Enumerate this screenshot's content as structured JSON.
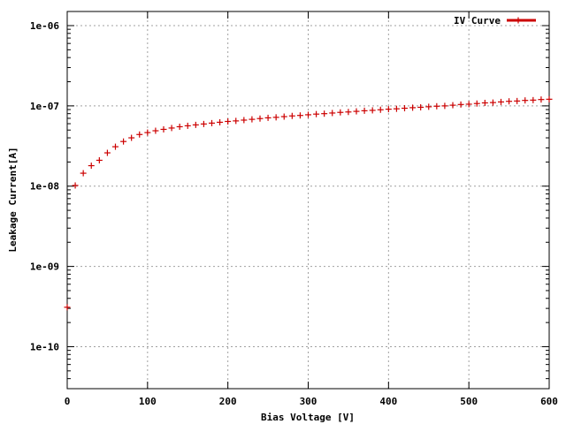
{
  "chart_data": {
    "type": "scatter",
    "xlabel": "Bias Voltage [V]",
    "ylabel": "Leakage Current[A]",
    "xlim": [
      0,
      600
    ],
    "ylim": [
      3e-11,
      1.5e-06
    ],
    "yscale": "log",
    "grid": true,
    "legend_position": "top-right",
    "x_ticks": [
      0,
      100,
      200,
      300,
      400,
      500,
      600
    ],
    "x_tick_labels": [
      "0",
      "100",
      "200",
      "300",
      "400",
      "500",
      "600"
    ],
    "y_ticks": [
      1e-10,
      1e-09,
      1e-08,
      1e-07,
      1e-06
    ],
    "y_tick_labels": [
      "1e-10",
      "1e-09",
      "1e-08",
      "1e-07",
      "1e-06"
    ],
    "series": [
      {
        "name": "IV Curve",
        "color": "#cc0000",
        "marker": "plus",
        "x": [
          0,
          10,
          20,
          30,
          40,
          50,
          60,
          70,
          80,
          90,
          100,
          110,
          120,
          130,
          140,
          150,
          160,
          170,
          180,
          190,
          200,
          210,
          220,
          230,
          240,
          250,
          260,
          270,
          280,
          290,
          300,
          310,
          320,
          330,
          340,
          350,
          360,
          370,
          380,
          390,
          400,
          410,
          420,
          430,
          440,
          450,
          460,
          470,
          480,
          490,
          500,
          510,
          520,
          530,
          540,
          550,
          560,
          570,
          580,
          590,
          600
        ],
        "y": [
          3.1e-10,
          1.02e-08,
          1.45e-08,
          1.8e-08,
          2.1e-08,
          2.6e-08,
          3.1e-08,
          3.6e-08,
          4e-08,
          4.4e-08,
          4.65e-08,
          4.9e-08,
          5.1e-08,
          5.3e-08,
          5.5e-08,
          5.65e-08,
          5.8e-08,
          5.95e-08,
          6.1e-08,
          6.25e-08,
          6.4e-08,
          6.5e-08,
          6.65e-08,
          6.8e-08,
          6.95e-08,
          7.1e-08,
          7.2e-08,
          7.35e-08,
          7.5e-08,
          7.6e-08,
          7.75e-08,
          7.9e-08,
          8e-08,
          8.15e-08,
          8.3e-08,
          8.4e-08,
          8.55e-08,
          8.7e-08,
          8.8e-08,
          8.95e-08,
          9.1e-08,
          9.2e-08,
          9.35e-08,
          9.5e-08,
          9.6e-08,
          9.75e-08,
          9.9e-08,
          1e-07,
          1.02e-07,
          1.04e-07,
          1.05e-07,
          1.07e-07,
          1.09e-07,
          1.1e-07,
          1.12e-07,
          1.14e-07,
          1.15e-07,
          1.17e-07,
          1.18e-07,
          1.2e-07,
          1.21e-07
        ]
      }
    ]
  }
}
